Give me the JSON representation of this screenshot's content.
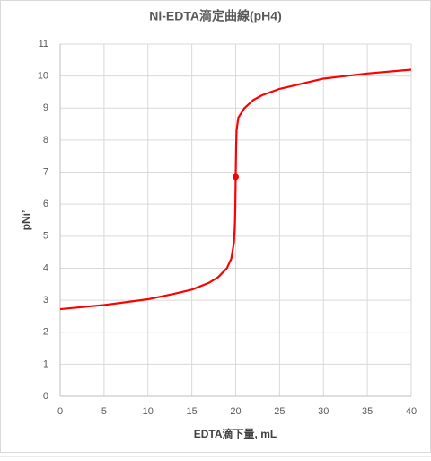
{
  "chart_data": {
    "type": "line",
    "title": "Ni-EDTA滴定曲線(pH4)",
    "x_label": "EDTA滴下量, mL",
    "y_label": "pNi’",
    "xlim": [
      0,
      40
    ],
    "xticks": [
      0,
      5,
      10,
      15,
      20,
      25,
      30,
      35,
      40
    ],
    "ylim": [
      0,
      11
    ],
    "yticks": [
      0,
      1,
      2,
      3,
      4,
      5,
      6,
      7,
      8,
      9,
      10,
      11
    ],
    "grid": true,
    "series": [
      {
        "color": "#ff0000",
        "x": [
          0,
          5,
          10,
          13,
          15,
          17,
          18,
          19,
          19.5,
          19.8,
          19.9,
          19.95,
          20,
          20.05,
          20.1,
          20.3,
          21,
          22,
          23,
          25,
          30,
          35,
          40
        ],
        "values": [
          2.72,
          2.85,
          3.03,
          3.2,
          3.33,
          3.55,
          3.72,
          4.0,
          4.3,
          4.8,
          5.3,
          5.8,
          6.85,
          7.8,
          8.3,
          8.7,
          9.0,
          9.25,
          9.4,
          9.6,
          9.92,
          10.08,
          10.2
        ]
      },
      {
        "color": "#ff0000",
        "marker": true,
        "x": [
          20
        ],
        "values": [
          6.85
        ]
      }
    ]
  }
}
